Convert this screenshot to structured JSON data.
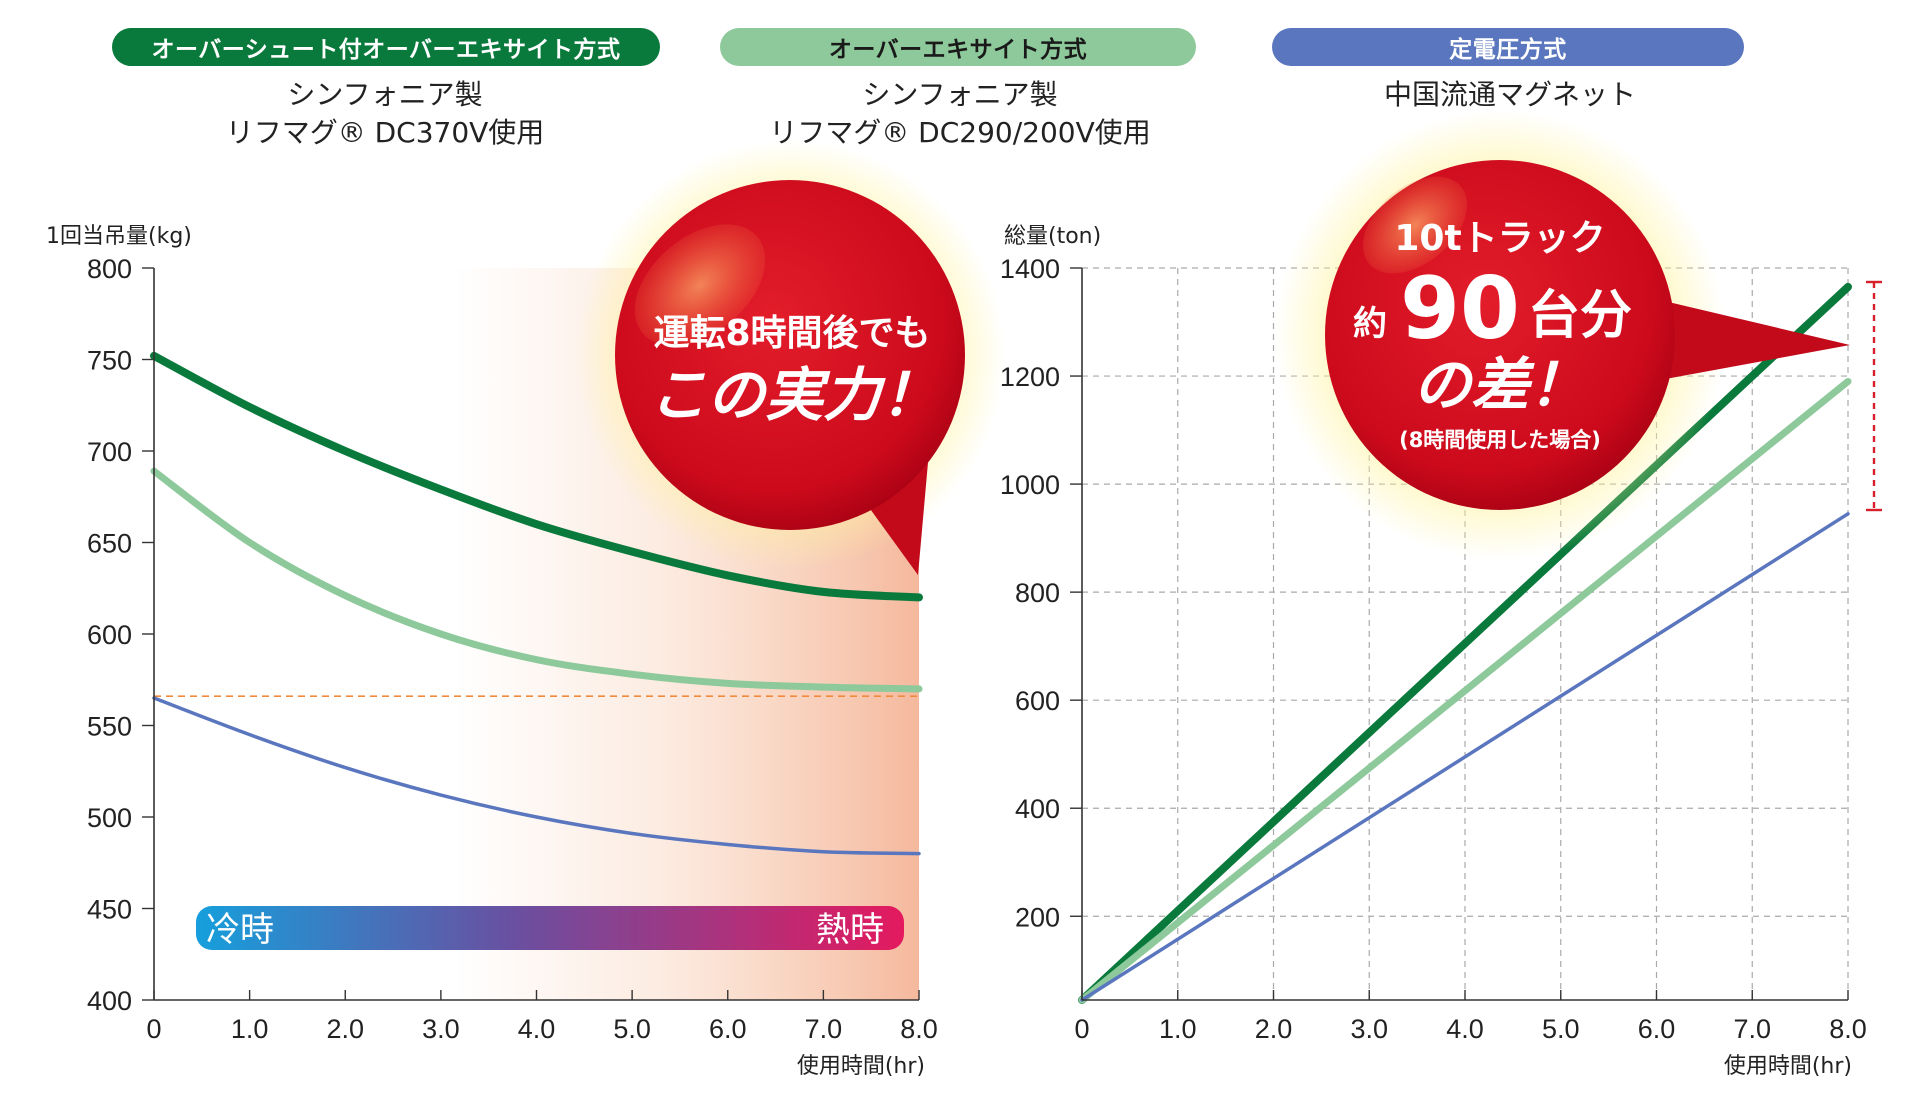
{
  "header": {
    "categories": [
      {
        "label": "オーバーシュート付オーバーエキサイト方式",
        "color": "#0a7a3c",
        "line1": "シンフォニア製",
        "line2": "リフマグ® DC370V使用"
      },
      {
        "label": "オーバーエキサイト方式",
        "color": "#8dc99a",
        "line1": "シンフォニア製",
        "line2": "リフマグ® DC290/200V使用"
      },
      {
        "label": "定電圧方式",
        "color": "#5a76be",
        "line1": "中国流通マグネット",
        "line2": ""
      }
    ]
  },
  "gradient_bar": {
    "left": "冷時",
    "right": "熱時"
  },
  "bubble1": {
    "line1": "運転8時間後でも",
    "line2": "この実力！"
  },
  "bubble2": {
    "line1": "10tトラック",
    "prefix": "約",
    "big": "90",
    "line2_suffix": "台分",
    "line3": "の差！",
    "line4": "(8時間使用した場合)"
  },
  "chart_data": [
    {
      "type": "line",
      "ylabel": "1回当吊量(kg)",
      "xlabel": "使用時間(hr)",
      "ylim": [
        400,
        800
      ],
      "xlim": [
        0,
        8
      ],
      "xticks": [
        "0",
        "1.0",
        "2.0",
        "3.0",
        "4.0",
        "5.0",
        "6.0",
        "7.0",
        "8.0"
      ],
      "yticks": [
        "400",
        "450",
        "500",
        "550",
        "600",
        "650",
        "700",
        "750",
        "800"
      ],
      "grid": false,
      "reference_line": 566,
      "series": [
        {
          "name": "オーバーシュート付オーバーエキサイト方式",
          "color": "#0a7a3c",
          "x": [
            0,
            1,
            2,
            3,
            4,
            5,
            6,
            7,
            8
          ],
          "values": [
            752,
            724,
            700,
            679,
            660,
            645,
            632,
            623,
            620
          ]
        },
        {
          "name": "オーバーエキサイト方式",
          "color": "#8dc99a",
          "x": [
            0,
            1,
            2,
            3,
            4,
            5,
            6,
            7,
            8
          ],
          "values": [
            689,
            650,
            621,
            600,
            586,
            578,
            573,
            571,
            570
          ]
        },
        {
          "name": "定電圧方式",
          "color": "#5a76be",
          "x": [
            0,
            1,
            2,
            3,
            4,
            5,
            6,
            7,
            8
          ],
          "values": [
            565,
            545,
            527,
            512,
            500,
            491,
            485,
            481,
            480
          ]
        }
      ]
    },
    {
      "type": "line",
      "ylabel": "総量(ton)",
      "xlabel": "使用時間(hr)",
      "ylim": [
        45,
        1400
      ],
      "xlim": [
        0,
        8
      ],
      "xticks": [
        "0",
        "1.0",
        "2.0",
        "3.0",
        "4.0",
        "5.0",
        "6.0",
        "7.0",
        "8.0"
      ],
      "yticks": [
        "200",
        "400",
        "600",
        "800",
        "1000",
        "1200",
        "1400"
      ],
      "grid": true,
      "series": [
        {
          "name": "オーバーシュート付オーバーエキサイト方式",
          "color": "#0a7a3c",
          "x": [
            0,
            8
          ],
          "values": [
            45,
            1365
          ]
        },
        {
          "name": "オーバーエキサイト方式",
          "color": "#8dc99a",
          "x": [
            0,
            8
          ],
          "values": [
            45,
            1190
          ]
        },
        {
          "name": "定電圧方式",
          "color": "#5a76be",
          "x": [
            0,
            8
          ],
          "values": [
            45,
            945
          ]
        }
      ]
    }
  ]
}
